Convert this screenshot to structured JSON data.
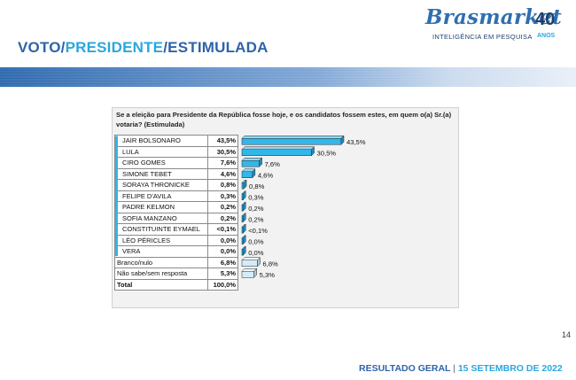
{
  "header": {
    "title_pre": "VOTO/",
    "title_hl": "PRESIDENTE",
    "title_post": "/ESTIMULADA"
  },
  "brand": {
    "name": "Brasmarket",
    "num": "40",
    "tagline": "INTELIGÊNCIA EM PESQUISA",
    "anos": "ANOS",
    "primary_color": "#2f6fb1",
    "accent_color": "#2aa7df"
  },
  "question": "Se a eleição para Presidente da República fosse hoje, e os candidatos fossem estes, em quem o(a) Sr.(a) votaria? (Estimulada)",
  "chart_data": {
    "type": "bar",
    "orientation": "horizontal",
    "categories": [
      "JAIR BOLSONARO",
      "LULA",
      "CIRO GOMES",
      "SIMONE TEBET",
      "SORAYA THRONICKE",
      "FELIPE D'AVILA",
      "PADRE KELMON",
      "SOFIA MANZANO",
      "CONSTITUINTE EYMAEL",
      "LÉO PÉRICLES",
      "VERA",
      "Branco/nulo",
      "Não sabe/sem resposta"
    ],
    "values": [
      43.5,
      30.5,
      7.6,
      4.6,
      0.8,
      0.3,
      0.2,
      0.2,
      0.05,
      0.0,
      0.0,
      6.8,
      5.3
    ],
    "value_labels": [
      "43,5%",
      "30,5%",
      "7,6%",
      "4,6%",
      "0,8%",
      "0,3%",
      "0,2%",
      "0,2%",
      "<0,1%",
      "0,0%",
      "0,0%",
      "6,8%",
      "5,3%"
    ],
    "bar_colors": [
      "#33b6e8",
      "#33b6e8",
      "#33b6e8",
      "#33b6e8",
      "#33b6e8",
      "#33b6e8",
      "#33b6e8",
      "#33b6e8",
      "#33b6e8",
      "#33b6e8",
      "#33b6e8",
      "#d4ecf8",
      "#d4ecf8"
    ],
    "xlim": [
      0,
      45
    ],
    "total_label": "Total",
    "total_value": "100,0%"
  },
  "rows": [
    {
      "label": "JAIR BOLSONARO",
      "value": "43,5%"
    },
    {
      "label": "LULA",
      "value": "30,5%"
    },
    {
      "label": "CIRO GOMES",
      "value": "7,6%"
    },
    {
      "label": "SIMONE TEBET",
      "value": "4,6%"
    },
    {
      "label": "SORAYA THRONICKE",
      "value": "0,8%"
    },
    {
      "label": "FELIPE D'AVILA",
      "value": "0,3%"
    },
    {
      "label": "PADRE KELMON",
      "value": "0,2%"
    },
    {
      "label": "SOFIA MANZANO",
      "value": "0,2%"
    },
    {
      "label": "CONSTITUINTE EYMAEL",
      "value": "<0,1%"
    },
    {
      "label": "LÉO PÉRICLES",
      "value": "0,0%"
    },
    {
      "label": "VERA",
      "value": "0,0%"
    },
    {
      "label": "Branco/nulo",
      "value": "6,8%"
    },
    {
      "label": "Não sabe/sem resposta",
      "value": "5,3%"
    }
  ],
  "footer": {
    "label": "RESULTADO GERAL",
    "sep": "|",
    "date": "15  SETEMBRO DE 2022"
  },
  "page_number": "14"
}
